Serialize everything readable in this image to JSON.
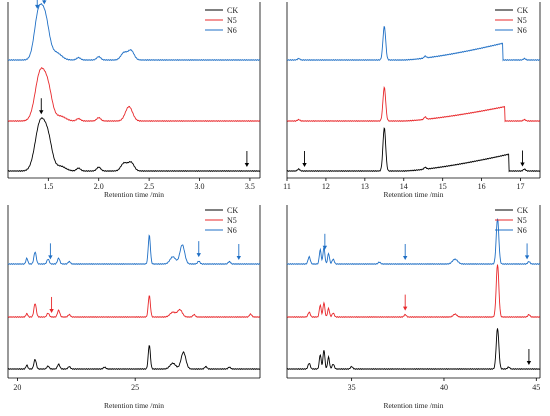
{
  "colors": {
    "CK": "#000000",
    "N5": "#e8282b",
    "N6": "#1f6fc5",
    "axis": "#000000"
  },
  "chart_data": [
    {
      "type": "line",
      "panel": "top-left",
      "xlabel": "Retention time /min",
      "xlim": [
        1.1,
        3.6
      ],
      "xticks": [
        1.5,
        2.0,
        2.5,
        3.0,
        3.5
      ],
      "xtick_labels": [
        "1.5",
        "2.0",
        "2.5",
        "3.0",
        "3.5"
      ],
      "legend": {
        "placement": "top-right",
        "entries": [
          "CK",
          "N5",
          "N6"
        ]
      },
      "baseline_drift": [
        0,
        0,
        0
      ],
      "series": [
        {
          "name": "CK",
          "peaks": [
            {
              "x": 1.42,
              "h": 1.0,
              "w": 0.05
            },
            {
              "x": 1.5,
              "h": 0.55,
              "w": 0.04
            },
            {
              "x": 1.62,
              "h": 0.1,
              "w": 0.05
            },
            {
              "x": 1.8,
              "h": 0.06,
              "w": 0.02
            },
            {
              "x": 2.0,
              "h": 0.08,
              "w": 0.02
            },
            {
              "x": 2.25,
              "h": 0.16,
              "w": 0.03
            },
            {
              "x": 2.32,
              "h": 0.18,
              "w": 0.03
            }
          ]
        },
        {
          "name": "N5",
          "peaks": [
            {
              "x": 1.42,
              "h": 1.0,
              "w": 0.05
            },
            {
              "x": 1.5,
              "h": 0.55,
              "w": 0.04
            },
            {
              "x": 1.62,
              "h": 0.1,
              "w": 0.05
            },
            {
              "x": 1.8,
              "h": 0.05,
              "w": 0.02
            },
            {
              "x": 2.0,
              "h": 0.07,
              "w": 0.02
            },
            {
              "x": 2.3,
              "h": 0.3,
              "w": 0.035
            }
          ]
        },
        {
          "name": "N6",
          "peaks": [
            {
              "x": 1.4,
              "h": 0.9,
              "w": 0.04
            },
            {
              "x": 1.47,
              "h": 0.8,
              "w": 0.04
            },
            {
              "x": 1.58,
              "h": 0.15,
              "w": 0.05
            },
            {
              "x": 1.8,
              "h": 0.05,
              "w": 0.02
            },
            {
              "x": 2.0,
              "h": 0.07,
              "w": 0.02
            },
            {
              "x": 2.25,
              "h": 0.15,
              "w": 0.03
            },
            {
              "x": 2.32,
              "h": 0.2,
              "w": 0.03
            }
          ]
        }
      ],
      "arrows": [
        {
          "series": "N6",
          "x": 1.39
        },
        {
          "series": "N6",
          "x": 1.46
        },
        {
          "series": "CK",
          "x": 1.43
        },
        {
          "series": "CK",
          "x": 3.47
        }
      ]
    },
    {
      "type": "line",
      "panel": "top-right",
      "xlabel": "Retention time /min",
      "xlim": [
        11,
        17.5
      ],
      "xticks": [
        11,
        12,
        13,
        14,
        15,
        16,
        17
      ],
      "xtick_labels": [
        "11",
        "12",
        "13",
        "14",
        "15",
        "16",
        "17"
      ],
      "legend": {
        "placement": "top-right",
        "entries": [
          "CK",
          "N5",
          "N6"
        ]
      },
      "series": [
        {
          "name": "CK",
          "drift": {
            "start": 14.0,
            "end": 16.7,
            "height": 0.35
          },
          "peaks": [
            {
              "x": 11.3,
              "h": 0.04,
              "w": 0.03
            },
            {
              "x": 13.5,
              "h": 0.9,
              "w": 0.035
            },
            {
              "x": 14.55,
              "h": 0.04,
              "w": 0.03
            },
            {
              "x": 17.1,
              "h": 0.04,
              "w": 0.03
            }
          ]
        },
        {
          "name": "N5",
          "drift": {
            "start": 14.0,
            "end": 16.6,
            "height": 0.3
          },
          "peaks": [
            {
              "x": 11.3,
              "h": 0.03,
              "w": 0.03
            },
            {
              "x": 13.5,
              "h": 0.7,
              "w": 0.035
            },
            {
              "x": 14.55,
              "h": 0.05,
              "w": 0.03
            },
            {
              "x": 17.1,
              "h": 0.03,
              "w": 0.03
            }
          ]
        },
        {
          "name": "N6",
          "drift": {
            "start": 14.0,
            "end": 16.55,
            "height": 0.35
          },
          "peaks": [
            {
              "x": 11.3,
              "h": 0.03,
              "w": 0.03
            },
            {
              "x": 13.5,
              "h": 0.7,
              "w": 0.035
            },
            {
              "x": 14.55,
              "h": 0.04,
              "w": 0.03
            },
            {
              "x": 17.1,
              "h": 0.03,
              "w": 0.03
            }
          ]
        }
      ],
      "arrows": [
        {
          "series": "CK",
          "x": 11.45
        },
        {
          "series": "CK",
          "x": 17.05
        }
      ]
    },
    {
      "type": "line",
      "panel": "bottom-left",
      "xlabel": "Retention time /min",
      "xlim": [
        19.6,
        30.3
      ],
      "xticks": [
        20,
        25
      ],
      "xtick_labels": [
        "20",
        "25"
      ],
      "legend": {
        "placement": "top-right",
        "entries": [
          "CK",
          "N5",
          "N6"
        ]
      },
      "series": [
        {
          "name": "CK",
          "peaks": [
            {
              "x": 20.4,
              "h": 0.08,
              "w": 0.04
            },
            {
              "x": 20.75,
              "h": 0.2,
              "w": 0.05
            },
            {
              "x": 21.3,
              "h": 0.06,
              "w": 0.05
            },
            {
              "x": 21.75,
              "h": 0.1,
              "w": 0.05
            },
            {
              "x": 22.2,
              "h": 0.05,
              "w": 0.05
            },
            {
              "x": 23.7,
              "h": 0.04,
              "w": 0.05
            },
            {
              "x": 25.6,
              "h": 0.5,
              "w": 0.045
            },
            {
              "x": 26.6,
              "h": 0.12,
              "w": 0.12
            },
            {
              "x": 27.05,
              "h": 0.35,
              "w": 0.1
            },
            {
              "x": 28.0,
              "h": 0.05,
              "w": 0.05
            },
            {
              "x": 29.0,
              "h": 0.04,
              "w": 0.05
            }
          ]
        },
        {
          "name": "N5",
          "peaks": [
            {
              "x": 20.4,
              "h": 0.07,
              "w": 0.04
            },
            {
              "x": 20.75,
              "h": 0.28,
              "w": 0.05
            },
            {
              "x": 21.3,
              "h": 0.08,
              "w": 0.05
            },
            {
              "x": 21.75,
              "h": 0.14,
              "w": 0.05
            },
            {
              "x": 22.2,
              "h": 0.05,
              "w": 0.05
            },
            {
              "x": 25.6,
              "h": 0.45,
              "w": 0.045
            },
            {
              "x": 26.6,
              "h": 0.1,
              "w": 0.12
            },
            {
              "x": 26.9,
              "h": 0.15,
              "w": 0.1
            },
            {
              "x": 27.5,
              "h": 0.05,
              "w": 0.05
            },
            {
              "x": 29.9,
              "h": 0.06,
              "w": 0.05
            }
          ]
        },
        {
          "name": "N6",
          "peaks": [
            {
              "x": 20.4,
              "h": 0.12,
              "w": 0.04
            },
            {
              "x": 20.75,
              "h": 0.25,
              "w": 0.05
            },
            {
              "x": 21.3,
              "h": 0.1,
              "w": 0.05
            },
            {
              "x": 21.75,
              "h": 0.12,
              "w": 0.05
            },
            {
              "x": 22.2,
              "h": 0.05,
              "w": 0.05
            },
            {
              "x": 25.6,
              "h": 0.6,
              "w": 0.045
            },
            {
              "x": 26.6,
              "h": 0.15,
              "w": 0.12
            },
            {
              "x": 27.0,
              "h": 0.4,
              "w": 0.1
            },
            {
              "x": 27.7,
              "h": 0.06,
              "w": 0.05
            },
            {
              "x": 29.0,
              "h": 0.05,
              "w": 0.05
            }
          ]
        }
      ],
      "arrows": [
        {
          "series": "N6",
          "x": 21.4
        },
        {
          "series": "N6",
          "x": 27.7
        },
        {
          "series": "N6",
          "x": 29.4
        },
        {
          "series": "N5",
          "x": 21.45
        }
      ]
    },
    {
      "type": "line",
      "panel": "bottom-right",
      "xlabel": "Retention time /min",
      "xlim": [
        31.5,
        45.2
      ],
      "xticks": [
        35,
        40,
        45
      ],
      "xtick_labels": [
        "35",
        "40",
        "45"
      ],
      "legend": {
        "placement": "top-right",
        "entries": [
          "CK",
          "N5",
          "N6"
        ]
      },
      "series": [
        {
          "name": "CK",
          "peaks": [
            {
              "x": 32.7,
              "h": 0.12,
              "w": 0.06
            },
            {
              "x": 33.3,
              "h": 0.3,
              "w": 0.05
            },
            {
              "x": 33.5,
              "h": 0.4,
              "w": 0.05
            },
            {
              "x": 33.75,
              "h": 0.25,
              "w": 0.05
            },
            {
              "x": 34.0,
              "h": 0.1,
              "w": 0.06
            },
            {
              "x": 35.0,
              "h": 0.05,
              "w": 0.06
            },
            {
              "x": 42.9,
              "h": 0.85,
              "w": 0.07
            },
            {
              "x": 43.5,
              "h": 0.04,
              "w": 0.06
            }
          ]
        },
        {
          "name": "N5",
          "peaks": [
            {
              "x": 32.7,
              "h": 0.1,
              "w": 0.06
            },
            {
              "x": 33.3,
              "h": 0.25,
              "w": 0.05
            },
            {
              "x": 33.5,
              "h": 0.3,
              "w": 0.05
            },
            {
              "x": 33.75,
              "h": 0.18,
              "w": 0.05
            },
            {
              "x": 34.0,
              "h": 0.08,
              "w": 0.06
            },
            {
              "x": 37.9,
              "h": 0.05,
              "w": 0.06
            },
            {
              "x": 40.6,
              "h": 0.06,
              "w": 0.1
            },
            {
              "x": 42.9,
              "h": 1.1,
              "w": 0.07
            },
            {
              "x": 44.6,
              "h": 0.05,
              "w": 0.06
            }
          ]
        },
        {
          "name": "N6",
          "peaks": [
            {
              "x": 32.7,
              "h": 0.15,
              "w": 0.06
            },
            {
              "x": 33.3,
              "h": 0.3,
              "w": 0.05
            },
            {
              "x": 33.5,
              "h": 0.35,
              "w": 0.05
            },
            {
              "x": 33.75,
              "h": 0.22,
              "w": 0.05
            },
            {
              "x": 34.0,
              "h": 0.1,
              "w": 0.06
            },
            {
              "x": 36.5,
              "h": 0.04,
              "w": 0.06
            },
            {
              "x": 40.6,
              "h": 0.1,
              "w": 0.14
            },
            {
              "x": 42.9,
              "h": 0.95,
              "w": 0.07
            },
            {
              "x": 44.6,
              "h": 0.05,
              "w": 0.06
            }
          ]
        }
      ],
      "arrows": [
        {
          "series": "N6",
          "x": 33.55
        },
        {
          "series": "N6",
          "x": 37.9
        },
        {
          "series": "N6",
          "x": 44.5
        },
        {
          "series": "N5",
          "x": 37.9
        },
        {
          "series": "CK",
          "x": 44.6
        }
      ]
    }
  ]
}
